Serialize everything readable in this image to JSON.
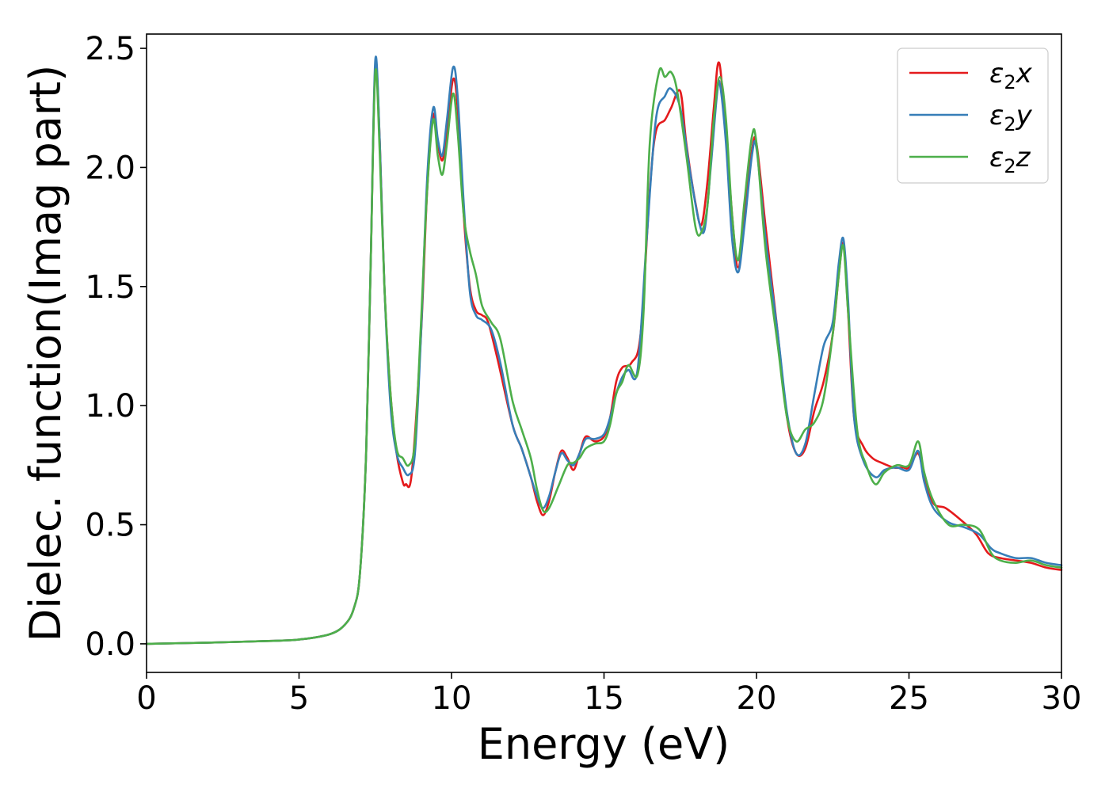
{
  "chart_data": {
    "type": "line",
    "xlabel": "Energy (eV)",
    "ylabel": "Dielec. function(Imag part)",
    "xlim": [
      0,
      30
    ],
    "ylim": [
      -0.12,
      2.56
    ],
    "xticks": [
      0,
      5,
      10,
      15,
      20,
      25,
      30
    ],
    "xtick_labels": [
      "0",
      "5",
      "10",
      "15",
      "20",
      "25",
      "30"
    ],
    "yticks": [
      0.0,
      0.5,
      1.0,
      1.5,
      2.0,
      2.5
    ],
    "ytick_labels": [
      "0.0",
      "0.5",
      "1.0",
      "1.5",
      "2.0",
      "2.5"
    ],
    "grid": false,
    "legend_position": "top-right",
    "series": [
      {
        "name": "ε2x",
        "label_main": "ε",
        "label_sub": "2",
        "label_tail": "x",
        "color": "#e41a1c",
        "points": [
          [
            0,
            0
          ],
          [
            2,
            0.005
          ],
          [
            4,
            0.012
          ],
          [
            5,
            0.018
          ],
          [
            6,
            0.04
          ],
          [
            6.5,
            0.08
          ],
          [
            6.8,
            0.15
          ],
          [
            7.0,
            0.3
          ],
          [
            7.2,
            0.8
          ],
          [
            7.35,
            1.6
          ],
          [
            7.5,
            2.42
          ],
          [
            7.65,
            2.1
          ],
          [
            7.8,
            1.5
          ],
          [
            8.0,
            1.05
          ],
          [
            8.2,
            0.8
          ],
          [
            8.4,
            0.68
          ],
          [
            8.5,
            0.67
          ],
          [
            8.7,
            0.72
          ],
          [
            9.0,
            1.3
          ],
          [
            9.2,
            1.9
          ],
          [
            9.4,
            2.22
          ],
          [
            9.55,
            2.1
          ],
          [
            9.7,
            2.03
          ],
          [
            9.85,
            2.15
          ],
          [
            10.05,
            2.37
          ],
          [
            10.2,
            2.25
          ],
          [
            10.4,
            1.8
          ],
          [
            10.6,
            1.5
          ],
          [
            10.8,
            1.4
          ],
          [
            11.0,
            1.38
          ],
          [
            11.2,
            1.35
          ],
          [
            11.5,
            1.2
          ],
          [
            12.0,
            0.92
          ],
          [
            12.3,
            0.82
          ],
          [
            12.6,
            0.7
          ],
          [
            12.8,
            0.6
          ],
          [
            13.0,
            0.54
          ],
          [
            13.2,
            0.6
          ],
          [
            13.4,
            0.72
          ],
          [
            13.6,
            0.81
          ],
          [
            13.8,
            0.78
          ],
          [
            14.0,
            0.73
          ],
          [
            14.2,
            0.8
          ],
          [
            14.4,
            0.87
          ],
          [
            14.7,
            0.85
          ],
          [
            15.0,
            0.87
          ],
          [
            15.2,
            0.95
          ],
          [
            15.4,
            1.1
          ],
          [
            15.6,
            1.16
          ],
          [
            15.9,
            1.18
          ],
          [
            16.2,
            1.3
          ],
          [
            16.5,
            1.9
          ],
          [
            16.7,
            2.15
          ],
          [
            17.0,
            2.2
          ],
          [
            17.2,
            2.25
          ],
          [
            17.5,
            2.32
          ],
          [
            17.7,
            2.1
          ],
          [
            18.0,
            1.85
          ],
          [
            18.2,
            1.76
          ],
          [
            18.4,
            1.95
          ],
          [
            18.6,
            2.25
          ],
          [
            18.75,
            2.44
          ],
          [
            18.9,
            2.3
          ],
          [
            19.2,
            1.8
          ],
          [
            19.4,
            1.58
          ],
          [
            19.6,
            1.8
          ],
          [
            19.85,
            2.07
          ],
          [
            20.0,
            2.1
          ],
          [
            20.3,
            1.75
          ],
          [
            20.7,
            1.3
          ],
          [
            21.0,
            0.95
          ],
          [
            21.3,
            0.8
          ],
          [
            21.6,
            0.82
          ],
          [
            21.9,
            0.98
          ],
          [
            22.2,
            1.1
          ],
          [
            22.5,
            1.3
          ],
          [
            22.7,
            1.55
          ],
          [
            22.85,
            1.68
          ],
          [
            23.0,
            1.4
          ],
          [
            23.2,
            0.95
          ],
          [
            23.5,
            0.83
          ],
          [
            23.8,
            0.78
          ],
          [
            24.1,
            0.76
          ],
          [
            24.5,
            0.74
          ],
          [
            24.8,
            0.74
          ],
          [
            25.0,
            0.74
          ],
          [
            25.3,
            0.8
          ],
          [
            25.5,
            0.7
          ],
          [
            25.8,
            0.59
          ],
          [
            26.2,
            0.57
          ],
          [
            26.7,
            0.52
          ],
          [
            27.2,
            0.46
          ],
          [
            27.6,
            0.38
          ],
          [
            28.0,
            0.36
          ],
          [
            28.5,
            0.35
          ],
          [
            29.0,
            0.34
          ],
          [
            29.5,
            0.32
          ],
          [
            30,
            0.31
          ]
        ]
      },
      {
        "name": "ε2y",
        "label_main": "ε",
        "label_sub": "2",
        "label_tail": "y",
        "color": "#377eb8",
        "points": [
          [
            0,
            0
          ],
          [
            2,
            0.005
          ],
          [
            4,
            0.012
          ],
          [
            5,
            0.018
          ],
          [
            6,
            0.04
          ],
          [
            6.5,
            0.08
          ],
          [
            6.8,
            0.15
          ],
          [
            7.0,
            0.3
          ],
          [
            7.2,
            0.8
          ],
          [
            7.35,
            1.6
          ],
          [
            7.5,
            2.45
          ],
          [
            7.65,
            2.1
          ],
          [
            7.8,
            1.5
          ],
          [
            8.0,
            1.0
          ],
          [
            8.2,
            0.8
          ],
          [
            8.4,
            0.74
          ],
          [
            8.6,
            0.71
          ],
          [
            8.8,
            0.8
          ],
          [
            9.0,
            1.3
          ],
          [
            9.2,
            1.95
          ],
          [
            9.4,
            2.25
          ],
          [
            9.55,
            2.12
          ],
          [
            9.7,
            2.05
          ],
          [
            9.85,
            2.2
          ],
          [
            10.05,
            2.42
          ],
          [
            10.2,
            2.3
          ],
          [
            10.4,
            1.85
          ],
          [
            10.6,
            1.48
          ],
          [
            10.8,
            1.38
          ],
          [
            11.0,
            1.36
          ],
          [
            11.3,
            1.32
          ],
          [
            11.6,
            1.18
          ],
          [
            12.0,
            0.92
          ],
          [
            12.3,
            0.82
          ],
          [
            12.6,
            0.7
          ],
          [
            12.8,
            0.62
          ],
          [
            13.0,
            0.57
          ],
          [
            13.2,
            0.62
          ],
          [
            13.4,
            0.72
          ],
          [
            13.6,
            0.8
          ],
          [
            13.8,
            0.77
          ],
          [
            14.0,
            0.75
          ],
          [
            14.2,
            0.8
          ],
          [
            14.4,
            0.86
          ],
          [
            14.7,
            0.86
          ],
          [
            15.0,
            0.88
          ],
          [
            15.2,
            0.95
          ],
          [
            15.4,
            1.05
          ],
          [
            15.6,
            1.12
          ],
          [
            15.8,
            1.15
          ],
          [
            16.1,
            1.15
          ],
          [
            16.4,
            1.7
          ],
          [
            16.7,
            2.2
          ],
          [
            17.0,
            2.3
          ],
          [
            17.2,
            2.33
          ],
          [
            17.5,
            2.25
          ],
          [
            17.8,
            2.0
          ],
          [
            18.1,
            1.78
          ],
          [
            18.3,
            1.74
          ],
          [
            18.5,
            2.0
          ],
          [
            18.7,
            2.3
          ],
          [
            18.8,
            2.35
          ],
          [
            19.0,
            2.1
          ],
          [
            19.2,
            1.7
          ],
          [
            19.4,
            1.56
          ],
          [
            19.6,
            1.75
          ],
          [
            19.85,
            2.05
          ],
          [
            20.0,
            2.08
          ],
          [
            20.3,
            1.7
          ],
          [
            20.7,
            1.3
          ],
          [
            21.0,
            0.97
          ],
          [
            21.3,
            0.8
          ],
          [
            21.6,
            0.84
          ],
          [
            21.9,
            1.05
          ],
          [
            22.2,
            1.25
          ],
          [
            22.5,
            1.35
          ],
          [
            22.7,
            1.6
          ],
          [
            22.85,
            1.7
          ],
          [
            23.0,
            1.45
          ],
          [
            23.2,
            0.95
          ],
          [
            23.5,
            0.77
          ],
          [
            23.9,
            0.7
          ],
          [
            24.2,
            0.73
          ],
          [
            24.6,
            0.74
          ],
          [
            25.0,
            0.73
          ],
          [
            25.3,
            0.81
          ],
          [
            25.5,
            0.68
          ],
          [
            25.8,
            0.57
          ],
          [
            26.3,
            0.51
          ],
          [
            26.8,
            0.49
          ],
          [
            27.3,
            0.46
          ],
          [
            27.7,
            0.4
          ],
          [
            28.0,
            0.38
          ],
          [
            28.5,
            0.36
          ],
          [
            29.0,
            0.36
          ],
          [
            29.5,
            0.34
          ],
          [
            30,
            0.33
          ]
        ]
      },
      {
        "name": "ε2z",
        "label_main": "ε",
        "label_sub": "2",
        "label_tail": "z",
        "color": "#4daf4a",
        "points": [
          [
            0,
            0
          ],
          [
            2,
            0.005
          ],
          [
            4,
            0.012
          ],
          [
            5,
            0.018
          ],
          [
            6,
            0.04
          ],
          [
            6.5,
            0.08
          ],
          [
            6.8,
            0.15
          ],
          [
            7.0,
            0.3
          ],
          [
            7.2,
            0.8
          ],
          [
            7.35,
            1.6
          ],
          [
            7.5,
            2.4
          ],
          [
            7.65,
            2.05
          ],
          [
            7.8,
            1.5
          ],
          [
            8.0,
            1.05
          ],
          [
            8.2,
            0.82
          ],
          [
            8.4,
            0.78
          ],
          [
            8.6,
            0.75
          ],
          [
            8.8,
            0.85
          ],
          [
            9.0,
            1.35
          ],
          [
            9.2,
            1.9
          ],
          [
            9.4,
            2.2
          ],
          [
            9.55,
            2.05
          ],
          [
            9.7,
            1.97
          ],
          [
            9.85,
            2.1
          ],
          [
            10.05,
            2.31
          ],
          [
            10.2,
            2.15
          ],
          [
            10.4,
            1.8
          ],
          [
            10.6,
            1.65
          ],
          [
            10.8,
            1.55
          ],
          [
            11.0,
            1.42
          ],
          [
            11.3,
            1.35
          ],
          [
            11.6,
            1.28
          ],
          [
            12.0,
            1.02
          ],
          [
            12.3,
            0.9
          ],
          [
            12.6,
            0.78
          ],
          [
            12.8,
            0.65
          ],
          [
            13.0,
            0.56
          ],
          [
            13.2,
            0.57
          ],
          [
            13.5,
            0.66
          ],
          [
            13.8,
            0.75
          ],
          [
            14.0,
            0.76
          ],
          [
            14.2,
            0.78
          ],
          [
            14.4,
            0.82
          ],
          [
            14.7,
            0.84
          ],
          [
            15.0,
            0.85
          ],
          [
            15.2,
            0.92
          ],
          [
            15.4,
            1.05
          ],
          [
            15.6,
            1.1
          ],
          [
            15.8,
            1.17
          ],
          [
            16.1,
            1.13
          ],
          [
            16.3,
            1.4
          ],
          [
            16.5,
            2.1
          ],
          [
            16.8,
            2.4
          ],
          [
            17.0,
            2.38
          ],
          [
            17.2,
            2.4
          ],
          [
            17.4,
            2.32
          ],
          [
            17.7,
            2.05
          ],
          [
            18.0,
            1.75
          ],
          [
            18.2,
            1.73
          ],
          [
            18.4,
            1.85
          ],
          [
            18.6,
            2.2
          ],
          [
            18.8,
            2.38
          ],
          [
            19.0,
            2.2
          ],
          [
            19.2,
            1.8
          ],
          [
            19.4,
            1.61
          ],
          [
            19.6,
            1.85
          ],
          [
            19.85,
            2.13
          ],
          [
            20.0,
            2.1
          ],
          [
            20.3,
            1.65
          ],
          [
            20.7,
            1.25
          ],
          [
            21.0,
            0.95
          ],
          [
            21.3,
            0.85
          ],
          [
            21.6,
            0.9
          ],
          [
            21.9,
            0.93
          ],
          [
            22.2,
            1.03
          ],
          [
            22.5,
            1.3
          ],
          [
            22.7,
            1.55
          ],
          [
            22.85,
            1.67
          ],
          [
            23.0,
            1.4
          ],
          [
            23.3,
            0.9
          ],
          [
            23.6,
            0.75
          ],
          [
            23.9,
            0.67
          ],
          [
            24.2,
            0.72
          ],
          [
            24.6,
            0.75
          ],
          [
            25.0,
            0.75
          ],
          [
            25.3,
            0.85
          ],
          [
            25.5,
            0.72
          ],
          [
            25.8,
            0.6
          ],
          [
            26.3,
            0.5
          ],
          [
            26.8,
            0.5
          ],
          [
            27.3,
            0.48
          ],
          [
            27.7,
            0.38
          ],
          [
            28.0,
            0.35
          ],
          [
            28.5,
            0.34
          ],
          [
            29.0,
            0.35
          ],
          [
            29.5,
            0.33
          ],
          [
            30,
            0.32
          ]
        ]
      }
    ]
  }
}
